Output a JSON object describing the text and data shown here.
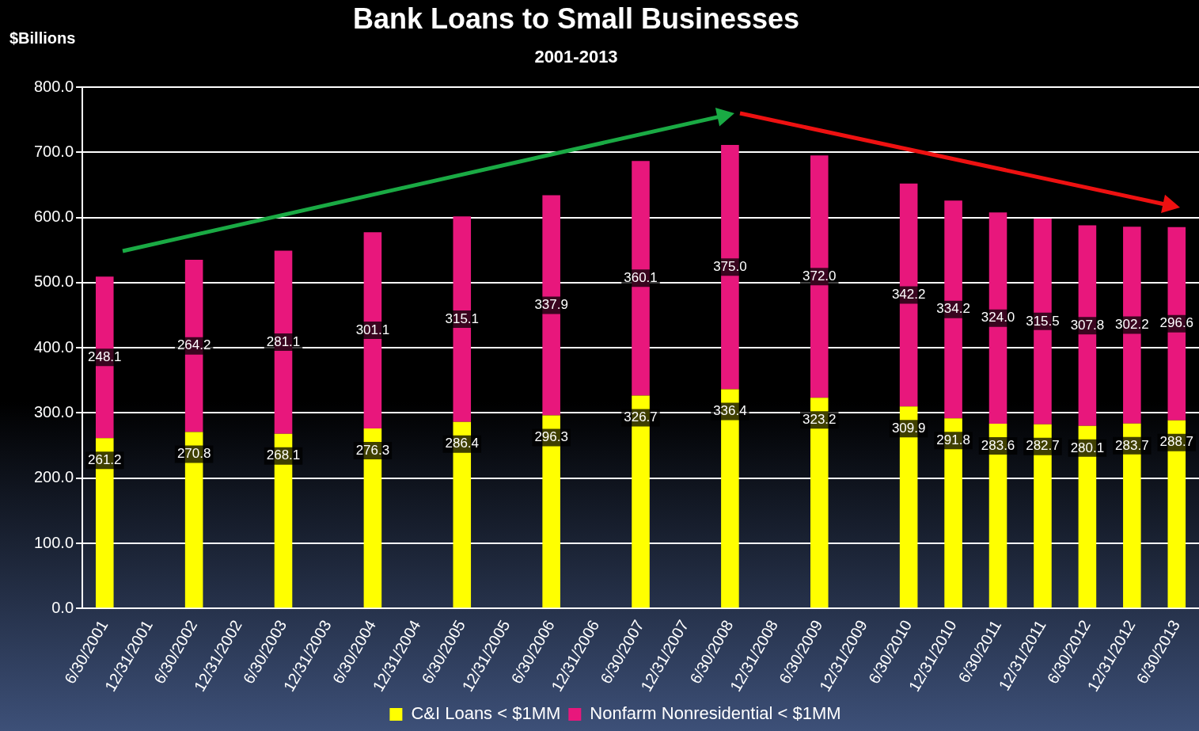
{
  "chart_data": {
    "type": "bar",
    "title": "Bank Loans to Small Businesses",
    "subtitle": "2001-2013",
    "ylabel": "$Billions",
    "categories": [
      "6/30/2001",
      "12/31/2001",
      "6/30/2002",
      "12/31/2002",
      "6/30/2003",
      "12/31/2003",
      "6/30/2004",
      "12/31/2004",
      "6/30/2005",
      "12/31/2005",
      "6/30/2006",
      "12/31/2006",
      "6/30/2007",
      "12/31/2007",
      "6/30/2008",
      "12/31/2008",
      "6/30/2009",
      "12/31/2009",
      "6/30/2010",
      "12/31/2010",
      "6/30/2011",
      "12/31/2011",
      "6/30/2012",
      "12/31/2012",
      "6/30/2013"
    ],
    "stacked": true,
    "series": [
      {
        "name": "C&I Loans < $1MM",
        "color": "#ffff00",
        "values": [
          261.2,
          null,
          270.8,
          null,
          268.1,
          null,
          276.3,
          null,
          286.4,
          null,
          296.3,
          null,
          326.7,
          null,
          336.4,
          null,
          323.2,
          null,
          309.9,
          291.8,
          283.6,
          282.7,
          280.1,
          283.7,
          288.7
        ],
        "value_labels": [
          "261.2",
          null,
          "270.8",
          null,
          "268.1",
          null,
          "276.3",
          null,
          "286.4",
          null,
          "296.3",
          null,
          "326.7",
          null,
          "336.4",
          null,
          "323.2",
          null,
          "309.9",
          "291.8",
          "283.6",
          "282.7",
          "280.1",
          "283.7",
          "288.7"
        ]
      },
      {
        "name": "Nonfarm Nonresidential < $1MM",
        "color": "#e8177c",
        "values": [
          248.1,
          null,
          264.2,
          null,
          281.1,
          null,
          301.1,
          null,
          315.1,
          null,
          337.9,
          null,
          360.1,
          null,
          375.0,
          null,
          372.0,
          null,
          342.2,
          334.2,
          324.0,
          315.5,
          307.8,
          302.2,
          296.6
        ],
        "value_labels": [
          "248.1",
          null,
          "264.2",
          null,
          "281.1",
          null,
          "301.1",
          null,
          "315.1",
          null,
          "337.9",
          null,
          "360.1",
          null,
          "375.0",
          null,
          "372.0",
          null,
          "342.2",
          "334.2",
          "324.0",
          "315.5",
          "307.8",
          "302.2",
          "296.6"
        ]
      }
    ],
    "ylim": [
      0,
      800
    ],
    "yticks": [
      {
        "value": 0,
        "label": "0.0"
      },
      {
        "value": 100,
        "label": "100.0"
      },
      {
        "value": 200,
        "label": "200.0"
      },
      {
        "value": 300,
        "label": "300.0"
      },
      {
        "value": 400,
        "label": "400.0"
      },
      {
        "value": 500,
        "label": "500.0"
      },
      {
        "value": 600,
        "label": "600.0"
      },
      {
        "value": 700,
        "label": "700.0"
      },
      {
        "value": 800,
        "label": "800.0"
      }
    ],
    "grid": "y",
    "legend": "bottom"
  }
}
